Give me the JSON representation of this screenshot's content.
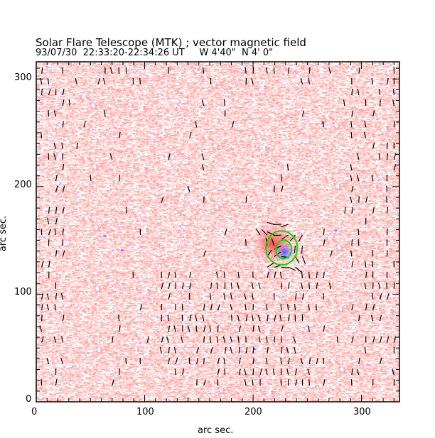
{
  "chart_data": {
    "type": "vector-field-image",
    "title": "Solar Flare Telescope (MTK) ; vector magnetic field",
    "subtitle": "93/07/30  22:33:20-22:34:26 UT     W 4'40\"  N 4' 0\"",
    "xlabel": "arc sec.",
    "ylabel": "arc sec.",
    "xlim": [
      0,
      335
    ],
    "ylim": [
      0,
      316
    ],
    "xticks": [
      "0",
      "100",
      "200",
      "300"
    ],
    "yticks": [
      "0",
      "100",
      "200",
      "300"
    ],
    "xtick_values": [
      0,
      100,
      200,
      300
    ],
    "ytick_values": [
      0,
      100,
      200,
      300
    ],
    "minor_tick_step": 10,
    "active_region_center": [
      225,
      143
    ],
    "colors": {
      "positive": "#ff9999",
      "negative": "#9999ff",
      "contour": "#00dd00",
      "arrows": "#000000"
    }
  }
}
